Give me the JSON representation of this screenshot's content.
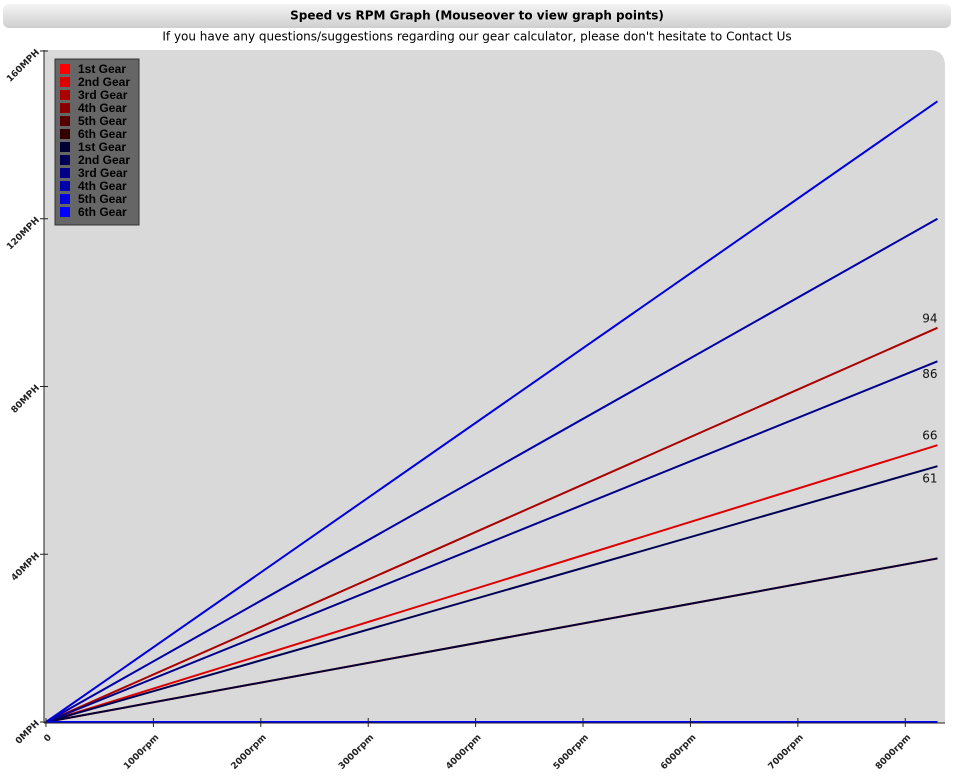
{
  "chart_data": {
    "type": "line",
    "title": "Speed vs RPM Graph (Mouseover to view graph points)",
    "subtitle": "If you have any questions/suggestions regarding our gear calculator, please don't hesitate to Contact Us",
    "x": [
      0,
      8300
    ],
    "xlim": [
      0,
      8370
    ],
    "ylim": [
      0,
      160
    ],
    "xticks": [
      0,
      {
        "value": 1000,
        "label": "1000rpm"
      },
      {
        "value": 2000,
        "label": "2000rpm"
      },
      {
        "value": 3000,
        "label": "3000rpm"
      },
      {
        "value": 4000,
        "label": "4000rpm"
      },
      {
        "value": 5000,
        "label": "5000rpm"
      },
      {
        "value": 6000,
        "label": "6000rpm"
      },
      {
        "value": 7000,
        "label": "7000rpm"
      },
      {
        "value": 8000,
        "label": "8000rpm"
      }
    ],
    "yticks": [
      {
        "value": 0,
        "label": "0MPH"
      },
      {
        "value": 40,
        "label": "40MPH"
      },
      {
        "value": 80,
        "label": "80MPH"
      },
      {
        "value": 120,
        "label": "120MPH"
      },
      {
        "value": 160,
        "label": "160MPH"
      }
    ],
    "series": [
      {
        "name": "1st Gear",
        "color": "#ff0000",
        "values": [
          0,
          39
        ]
      },
      {
        "name": "2nd Gear",
        "color": "#dd0000",
        "values": [
          0,
          66
        ],
        "end_label": true
      },
      {
        "name": "3rd Gear",
        "color": "#aa0000",
        "values": [
          0,
          94
        ],
        "end_label": true
      },
      {
        "name": "4th Gear",
        "color": "#880000",
        "values": [
          0,
          0
        ]
      },
      {
        "name": "5th Gear",
        "color": "#550000",
        "values": [
          0,
          0
        ]
      },
      {
        "name": "6th Gear",
        "color": "#330000",
        "values": [
          0,
          0
        ]
      },
      {
        "name": "1st Gear",
        "color": "#000033",
        "values": [
          0,
          39
        ]
      },
      {
        "name": "2nd Gear",
        "color": "#000055",
        "values": [
          0,
          61
        ],
        "end_label": true
      },
      {
        "name": "3rd Gear",
        "color": "#000088",
        "values": [
          0,
          86
        ],
        "end_label": true
      },
      {
        "name": "4th Gear",
        "color": "#0000aa",
        "values": [
          0,
          120
        ]
      },
      {
        "name": "5th Gear",
        "color": "#0000dd",
        "values": [
          0,
          148
        ]
      },
      {
        "name": "6th Gear",
        "color": "#0000ff",
        "values": [
          0,
          0
        ]
      }
    ]
  }
}
